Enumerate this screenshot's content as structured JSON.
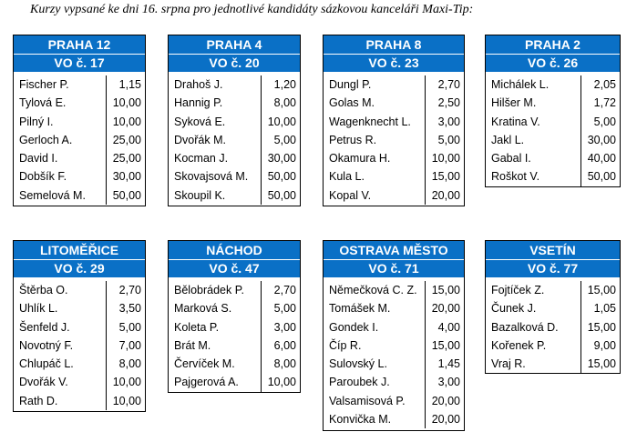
{
  "caption": "Kurzy vypsané ke dni 16. srpna pro jednotlivé kandidáty sázkovou kanceláři Maxi-Tip:",
  "cards": [
    {
      "title": "PRAHA 12",
      "sub": "VO č. 17",
      "rows": [
        [
          "Fischer P.",
          "1,15"
        ],
        [
          "Tylová E.",
          "10,00"
        ],
        [
          "Pilný I.",
          "10,00"
        ],
        [
          "Gerloch A.",
          "25,00"
        ],
        [
          "David I.",
          "25,00"
        ],
        [
          "Dobšík F.",
          "30,00"
        ],
        [
          "Semelová M.",
          "50,00"
        ]
      ]
    },
    {
      "title": "PRAHA 4",
      "sub": "VO č. 20",
      "rows": [
        [
          "Drahoš J.",
          "1,20"
        ],
        [
          "Hannig P.",
          "8,00"
        ],
        [
          "Syková E.",
          "10,00"
        ],
        [
          "Dvořák M.",
          "5,00"
        ],
        [
          "Kocman J.",
          "30,00"
        ],
        [
          "Skovajsová M.",
          "50,00"
        ],
        [
          "Skoupil K.",
          "50,00"
        ]
      ]
    },
    {
      "title": "PRAHA 8",
      "sub": "VO č. 23",
      "rows": [
        [
          "Dungl P.",
          "2,70"
        ],
        [
          "Golas M.",
          "2,50"
        ],
        [
          "Wagenknecht L.",
          "3,00"
        ],
        [
          "Petrus R.",
          "5,00"
        ],
        [
          "Okamura H.",
          "10,00"
        ],
        [
          "Kula L.",
          "15,00"
        ],
        [
          "Kopal V.",
          "20,00"
        ]
      ]
    },
    {
      "title": "PRAHA 2",
      "sub": "VO č. 26",
      "rows": [
        [
          "Michálek L.",
          "2,05"
        ],
        [
          "Hilšer M.",
          "1,72"
        ],
        [
          "Kratina V.",
          "5,00"
        ],
        [
          "Jakl L.",
          "30,00"
        ],
        [
          "Gabal I.",
          "40,00"
        ],
        [
          "Roškot V.",
          "50,00"
        ]
      ]
    },
    {
      "title": "LITOMĚŘICE",
      "sub": "VO č. 29",
      "rows": [
        [
          "Štěrba O.",
          "2,70"
        ],
        [
          "Uhlík L.",
          "3,50"
        ],
        [
          "Šenfeld J.",
          "5,00"
        ],
        [
          "Novotný F.",
          "7,00"
        ],
        [
          "Chlupáč L.",
          "8,00"
        ],
        [
          "Dvořák V.",
          "10,00"
        ],
        [
          "Rath D.",
          "10,00"
        ]
      ]
    },
    {
      "title": "NÁCHOD",
      "sub": "VO č. 47",
      "rows": [
        [
          "Bělobrádek P.",
          "2,70"
        ],
        [
          "Marková S.",
          "5,00"
        ],
        [
          "Koleta P.",
          "3,00"
        ],
        [
          "Brát M.",
          "6,00"
        ],
        [
          "Červíček M.",
          "8,00"
        ],
        [
          "Pajgerová A.",
          "10,00"
        ]
      ]
    },
    {
      "title": "OSTRAVA MĚSTO",
      "sub": "VO č. 71",
      "rows": [
        [
          "Němečková C. Z.",
          "15,00"
        ],
        [
          "Tomášek M.",
          "20,00"
        ],
        [
          "Gondek I.",
          "4,00"
        ],
        [
          "Číp R.",
          "15,00"
        ],
        [
          "Sulovský L.",
          "1,45"
        ],
        [
          "Paroubek J.",
          "3,00"
        ],
        [
          "Valsamisová P.",
          "20,00"
        ],
        [
          "Konvička M.",
          "20,00"
        ]
      ]
    },
    {
      "title": "VSETÍN",
      "sub": "VO č. 77",
      "rows": [
        [
          "Fojtíček Z.",
          "15,00"
        ],
        [
          "Čunek J.",
          "1,05"
        ],
        [
          "Bazalková D.",
          "15,00"
        ],
        [
          "Kořenek P.",
          "9,00"
        ],
        [
          "Vraj R.",
          "15,00"
        ]
      ]
    }
  ]
}
